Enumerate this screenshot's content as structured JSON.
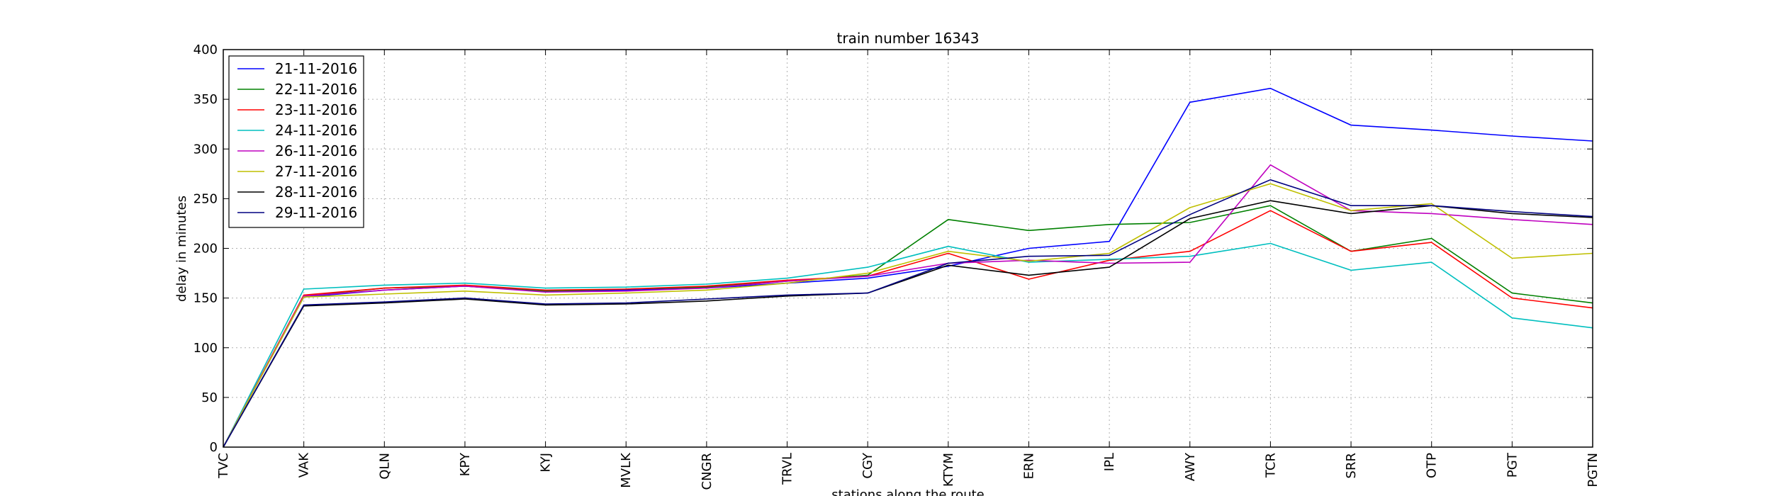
{
  "chart_data": {
    "type": "line",
    "title": "train number 16343",
    "xlabel": "stations along the route",
    "ylabel": "delay in minutes",
    "ylim": [
      0,
      400
    ],
    "yticks": [
      0,
      50,
      100,
      150,
      200,
      250,
      300,
      350,
      400
    ],
    "grid": true,
    "legend_position": "top-left",
    "categories": [
      "TVC",
      "VAK",
      "QLN",
      "KPY",
      "KYJ",
      "MVLK",
      "CNGR",
      "TRVL",
      "CGY",
      "KTYM",
      "ERN",
      "IPL",
      "AWY",
      "TCR",
      "SRR",
      "OTP",
      "PGT",
      "PGTN"
    ],
    "series": [
      {
        "name": "21-11-2016",
        "color": "#0000ff",
        "values": [
          0,
          151,
          158,
          162,
          157,
          158,
          160,
          165,
          170,
          182,
          200,
          207,
          347,
          361,
          324,
          319,
          313,
          308
        ]
      },
      {
        "name": "22-11-2016",
        "color": "#008000",
        "values": [
          0,
          152,
          160,
          162,
          157,
          159,
          161,
          167,
          173,
          229,
          218,
          224,
          226,
          243,
          197,
          210,
          155,
          145
        ]
      },
      {
        "name": "23-11-2016",
        "color": "#ff0000",
        "values": [
          0,
          153,
          160,
          163,
          158,
          159,
          162,
          168,
          172,
          195,
          169,
          188,
          197,
          238,
          197,
          206,
          150,
          140
        ]
      },
      {
        "name": "24-11-2016",
        "color": "#00bfbf",
        "values": [
          0,
          159,
          163,
          165,
          160,
          161,
          164,
          170,
          181,
          202,
          186,
          189,
          192,
          205,
          178,
          186,
          130,
          120
        ]
      },
      {
        "name": "26-11-2016",
        "color": "#bf00bf",
        "values": [
          0,
          152,
          158,
          162,
          156,
          157,
          160,
          167,
          172,
          185,
          188,
          185,
          186,
          284,
          238,
          235,
          229,
          224
        ]
      },
      {
        "name": "27-11-2016",
        "color": "#bfbf00",
        "values": [
          0,
          151,
          154,
          157,
          153,
          155,
          158,
          165,
          175,
          197,
          187,
          195,
          241,
          265,
          238,
          245,
          190,
          195
        ]
      },
      {
        "name": "28-11-2016",
        "color": "#000000",
        "values": [
          0,
          142,
          145,
          149,
          143,
          144,
          147,
          152,
          155,
          183,
          173,
          181,
          230,
          248,
          235,
          243,
          235,
          231
        ]
      },
      {
        "name": "29-11-2016",
        "color": "#000080",
        "values": [
          0,
          143,
          146,
          150,
          144,
          145,
          149,
          153,
          155,
          185,
          192,
          193,
          234,
          269,
          243,
          243,
          237,
          232
        ]
      }
    ]
  }
}
